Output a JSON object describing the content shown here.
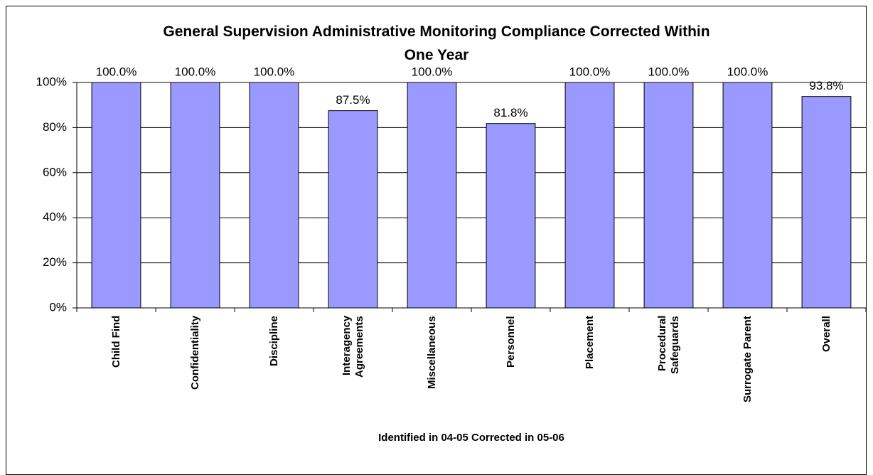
{
  "chart_data": {
    "type": "bar",
    "title": "General Supervision Administrative Monitoring Compliance Corrected Within One Year",
    "x_label": "Identified in 04-05 Corrected in 05-06",
    "categories": [
      "Child Find",
      "Confidentiality",
      "Discipline",
      "Interagency Agreements",
      "Miscellaneous",
      "Personnel",
      "Placement",
      "Procedural Safeguards",
      "Surrogate Parent",
      "Overall"
    ],
    "values": [
      100.0,
      100.0,
      100.0,
      87.5,
      100.0,
      81.8,
      100.0,
      100.0,
      100.0,
      93.8
    ],
    "value_labels": [
      "100.0%",
      "100.0%",
      "100.0%",
      "87.5%",
      "100.0%",
      "81.8%",
      "100.0%",
      "100.0%",
      "100.0%",
      "93.8%"
    ],
    "color": "#9999ff",
    "ylim": [
      0,
      100
    ],
    "yticks": [
      {
        "value": 0,
        "label": "0%"
      },
      {
        "value": 20,
        "label": "20%"
      },
      {
        "value": 40,
        "label": "40%"
      },
      {
        "value": 60,
        "label": "60%"
      },
      {
        "value": 80,
        "label": "80%"
      },
      {
        "value": 100,
        "label": "100%"
      }
    ],
    "grid": true
  }
}
